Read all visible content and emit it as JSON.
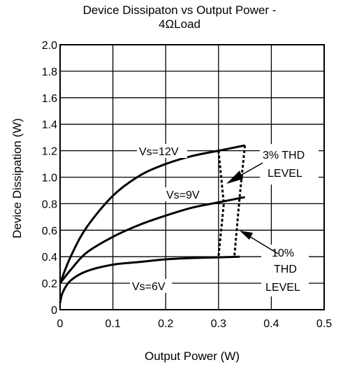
{
  "chart_data": {
    "type": "line",
    "title_line1": "Device Dissipaton vs Output  Power -",
    "title_line2": "4ΩLoad",
    "xlabel": "Output Power (W)",
    "ylabel": "Device Dissipation (W)",
    "xlim": [
      0,
      0.5
    ],
    "ylim": [
      0,
      2.0
    ],
    "grid": true,
    "x_ticks": [
      "0",
      "0.1",
      "0.2",
      "0.3",
      "0.4",
      "0.5"
    ],
    "y_ticks": [
      "0",
      "0.2",
      "0.4",
      "0.6",
      "0.8",
      "1.0",
      "1.2",
      "1.4",
      "1.6",
      "1.8",
      "2.0"
    ],
    "series": [
      {
        "name": "Vs=12V",
        "x": [
          0,
          0.02,
          0.05,
          0.1,
          0.15,
          0.2,
          0.25,
          0.3,
          0.35
        ],
        "y": [
          0.2,
          0.4,
          0.62,
          0.86,
          1.01,
          1.1,
          1.16,
          1.2,
          1.24
        ]
      },
      {
        "name": "Vs=9V",
        "x": [
          0,
          0.02,
          0.05,
          0.1,
          0.15,
          0.2,
          0.25,
          0.3,
          0.35
        ],
        "y": [
          0.2,
          0.3,
          0.43,
          0.55,
          0.64,
          0.71,
          0.77,
          0.81,
          0.85
        ]
      },
      {
        "name": "Vs=6V",
        "x": [
          0,
          0.005,
          0.02,
          0.05,
          0.1,
          0.15,
          0.2,
          0.25,
          0.3,
          0.34
        ],
        "y": [
          0.05,
          0.13,
          0.22,
          0.29,
          0.34,
          0.36,
          0.38,
          0.39,
          0.395,
          0.4
        ]
      }
    ],
    "thd_lines": [
      {
        "name": "3% THD LEVEL",
        "x": [
          0.3,
          0.31,
          0.3
        ],
        "y": [
          1.2,
          0.8,
          0.4
        ]
      },
      {
        "name": "10% THD LEVEL",
        "x": [
          0.35,
          0.34,
          0.33
        ],
        "y": [
          1.24,
          0.85,
          0.4
        ]
      }
    ],
    "annotations": {
      "vs12": "Vs=12V",
      "vs9": "Vs=9V",
      "vs6": "Vs=6V",
      "thd3_line1": "3% THD",
      "thd3_line2": "LEVEL",
      "thd10_line1": "10%",
      "thd10_line2": "THD",
      "thd10_line3": "LEVEL"
    }
  }
}
